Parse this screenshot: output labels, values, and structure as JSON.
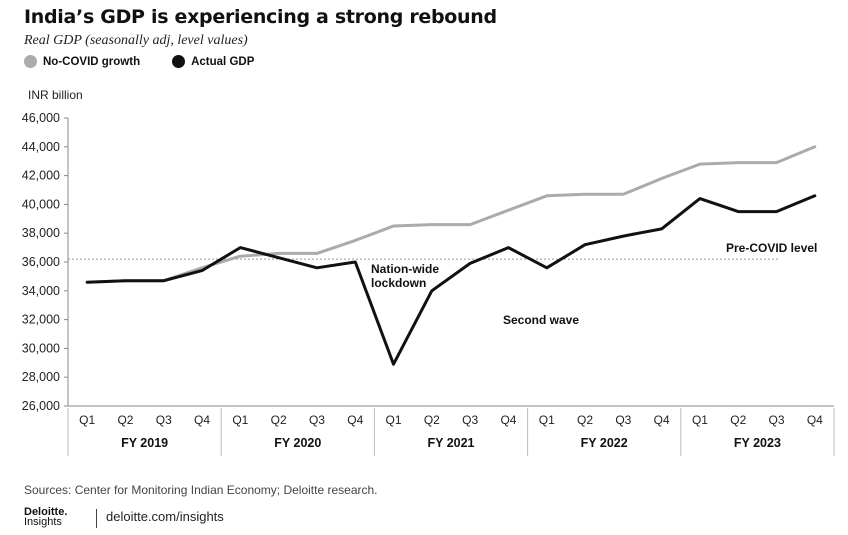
{
  "title": "India’s GDP is experiencing a strong rebound",
  "subtitle": "Real GDP (seasonally adj, level values)",
  "legend": [
    {
      "label": "No-COVID growth",
      "color": "#ababab"
    },
    {
      "label": "Actual GDP",
      "color": "#111111"
    }
  ],
  "unit_label": "INR billion",
  "annotations": {
    "pre_covid": "Pre-COVID level",
    "lockdown_line1": "Nation-wide",
    "lockdown_line2": "lockdown",
    "second_wave": "Second wave"
  },
  "footer": {
    "sources": "Sources:  Center for Monitoring Indian Economy; Deloitte research.",
    "brand_top": "Deloitte.",
    "brand_bottom": "Insights",
    "site": "deloitte.com/insights"
  },
  "chart_data": {
    "type": "line",
    "title": "India’s GDP is experiencing a strong rebound",
    "subtitle": "Real GDP (seasonally adj, level values)",
    "ylabel": "INR billion",
    "ylim": [
      26000,
      46000
    ],
    "yticks": [
      26000,
      28000,
      30000,
      32000,
      34000,
      36000,
      38000,
      40000,
      42000,
      44000,
      46000
    ],
    "ytick_labels": [
      "26,000",
      "28,000",
      "30,000",
      "32,000",
      "34,000",
      "36,000",
      "38,000",
      "40,000",
      "42,000",
      "44,000",
      "46,000"
    ],
    "categories": [
      "Q1",
      "Q2",
      "Q3",
      "Q4",
      "Q1",
      "Q2",
      "Q3",
      "Q4",
      "Q1",
      "Q2",
      "Q3",
      "Q4",
      "Q1",
      "Q2",
      "Q3",
      "Q4",
      "Q1",
      "Q2",
      "Q3",
      "Q4"
    ],
    "groups": [
      "FY 2019",
      "FY 2020",
      "FY 2021",
      "FY 2022",
      "FY 2023"
    ],
    "reference_line": {
      "label": "Pre-COVID level",
      "value": 36200
    },
    "series": [
      {
        "name": "No-COVID growth",
        "color": "#ababab",
        "values": [
          34600,
          34700,
          34700,
          35600,
          36400,
          36600,
          36600,
          37500,
          38500,
          38600,
          38600,
          39600,
          40600,
          40700,
          40700,
          41800,
          42800,
          42900,
          42900,
          44000
        ]
      },
      {
        "name": "Actual GDP",
        "color": "#111111",
        "values": [
          34600,
          34700,
          34700,
          35400,
          37000,
          36300,
          35600,
          36000,
          28900,
          34000,
          35900,
          37000,
          35600,
          37200,
          37800,
          38300,
          40400,
          39500,
          39500,
          40600
        ]
      }
    ],
    "grid": false,
    "legend_position": "top-left"
  }
}
